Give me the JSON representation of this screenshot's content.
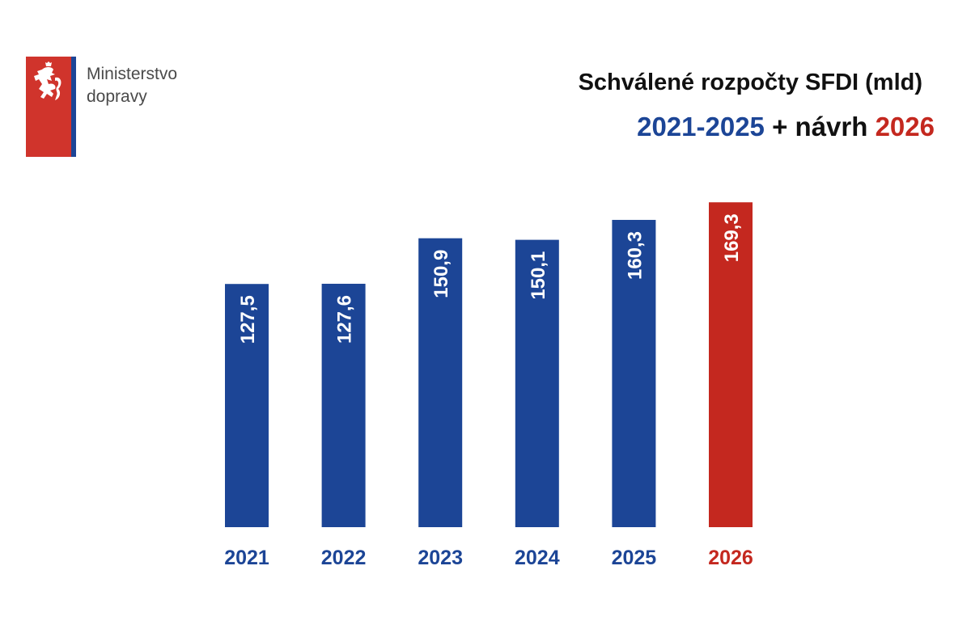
{
  "logo": {
    "line1": "Ministerstvo",
    "line2": "dopravy",
    "red": "#d0342c",
    "blue": "#1c4596"
  },
  "title": {
    "line1": "Schválené rozpočty SFDI (mld)",
    "line2_range": "2021-2025",
    "line2_mid": "+ návrh",
    "line2_year": "2026"
  },
  "chart_data": {
    "type": "bar",
    "title": "Schválené rozpočty SFDI (mld) 2021-2025 + návrh 2026",
    "xlabel": "",
    "ylabel": "mld",
    "categories": [
      "2021",
      "2022",
      "2023",
      "2024",
      "2025",
      "2026"
    ],
    "values": [
      127.5,
      127.6,
      150.9,
      150.1,
      160.3,
      169.3
    ],
    "value_labels": [
      "127,5",
      "127,6",
      "150,9",
      "150,1",
      "160,3",
      "169,3"
    ],
    "colors": [
      "#1c4596",
      "#1c4596",
      "#1c4596",
      "#1c4596",
      "#1c4596",
      "#c4281f"
    ],
    "ylim": [
      3,
      175
    ],
    "grid": false
  }
}
